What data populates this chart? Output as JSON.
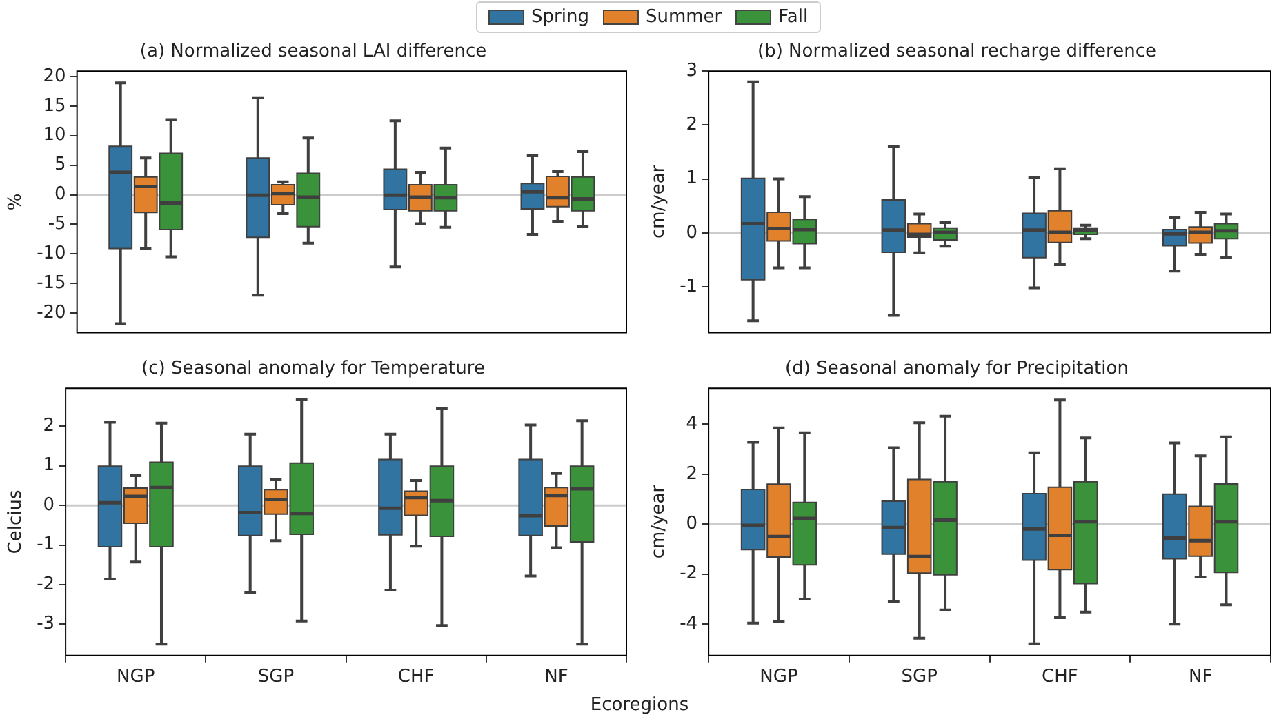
{
  "chart_data": [
    {
      "type": "box",
      "title": "(a) Normalized seasonal LAI difference",
      "ylabel": "%",
      "categories": [
        null,
        null,
        null,
        null
      ],
      "ylim": [
        -23.3,
        20.9
      ],
      "yticks": [
        -20,
        -15,
        -10,
        -5,
        0,
        5,
        10,
        15,
        20
      ],
      "tick_labels": "y",
      "grid": false,
      "legend": "top",
      "ref_lines": [
        {
          "axis": "y",
          "value": 0,
          "color": "#cccccc"
        }
      ],
      "series": [
        {
          "name": "Spring",
          "color": "#3274a1",
          "boxes": [
            {
              "low": -21.8,
              "q1": -9.1,
              "median": 3.8,
              "q3": 8.2,
              "high": 18.9
            },
            {
              "low": -17.0,
              "q1": -7.2,
              "median": -0.1,
              "q3": 6.2,
              "high": 16.4
            },
            {
              "low": -12.2,
              "q1": -2.5,
              "median": -0.1,
              "q3": 4.3,
              "high": 12.5
            },
            {
              "low": -6.7,
              "q1": -2.4,
              "median": 0.5,
              "q3": 1.9,
              "high": 6.6
            }
          ]
        },
        {
          "name": "Summer",
          "color": "#e1812c",
          "boxes": [
            {
              "low": -9.1,
              "q1": -3.0,
              "median": 1.4,
              "q3": 3.0,
              "high": 6.2
            },
            {
              "low": -3.2,
              "q1": -1.7,
              "median": 0.2,
              "q3": 1.7,
              "high": 2.2
            },
            {
              "low": -4.9,
              "q1": -2.7,
              "median": -0.4,
              "q3": 1.7,
              "high": 3.8
            },
            {
              "low": -4.5,
              "q1": -2.0,
              "median": -0.5,
              "q3": 3.1,
              "high": 3.9
            }
          ]
        },
        {
          "name": "Fall",
          "color": "#3a923a",
          "boxes": [
            {
              "low": -10.5,
              "q1": -5.9,
              "median": -1.4,
              "q3": 7.0,
              "high": 12.7
            },
            {
              "low": -8.2,
              "q1": -5.4,
              "median": -0.4,
              "q3": 3.6,
              "high": 9.6
            },
            {
              "low": -5.5,
              "q1": -2.7,
              "median": -0.5,
              "q3": 1.7,
              "high": 7.9
            },
            {
              "low": -5.3,
              "q1": -2.7,
              "median": -0.7,
              "q3": 3.0,
              "high": 7.3
            }
          ]
        }
      ]
    },
    {
      "type": "box",
      "title": "(b) Normalized seasonal recharge difference",
      "ylabel": "cm/year",
      "categories": [
        null,
        null,
        null,
        null
      ],
      "ylim": [
        -1.85,
        3.0
      ],
      "yticks": [
        -1,
        0,
        1,
        2,
        3
      ],
      "tick_labels": "y",
      "grid": false,
      "ref_lines": [
        {
          "axis": "y",
          "value": 0,
          "color": "#cccccc"
        }
      ],
      "series": [
        {
          "color": "#3274a1",
          "boxes": [
            {
              "low": -1.63,
              "q1": -0.87,
              "median": 0.17,
              "q3": 1.01,
              "high": 2.8
            },
            {
              "low": -1.53,
              "q1": -0.36,
              "median": 0.05,
              "q3": 0.61,
              "high": 1.61
            },
            {
              "low": -1.02,
              "q1": -0.46,
              "median": 0.05,
              "q3": 0.36,
              "high": 1.02
            },
            {
              "low": -0.71,
              "q1": -0.24,
              "median": -0.02,
              "q3": 0.06,
              "high": 0.28
            }
          ]
        },
        {
          "color": "#e1812c",
          "boxes": [
            {
              "low": -0.65,
              "q1": -0.15,
              "median": 0.08,
              "q3": 0.38,
              "high": 1.0
            },
            {
              "low": -0.37,
              "q1": -0.08,
              "median": -0.03,
              "q3": 0.17,
              "high": 0.35
            },
            {
              "low": -0.59,
              "q1": -0.18,
              "median": 0.01,
              "q3": 0.41,
              "high": 1.19
            },
            {
              "low": -0.4,
              "q1": -0.19,
              "median": 0.01,
              "q3": 0.11,
              "high": 0.38
            }
          ]
        },
        {
          "color": "#3a923a",
          "boxes": [
            {
              "low": -0.65,
              "q1": -0.2,
              "median": 0.06,
              "q3": 0.25,
              "high": 0.67
            },
            {
              "low": -0.25,
              "q1": -0.13,
              "median": 0.01,
              "q3": 0.09,
              "high": 0.19
            },
            {
              "low": -0.11,
              "q1": -0.03,
              "median": 0.05,
              "q3": 0.09,
              "high": 0.14
            },
            {
              "low": -0.46,
              "q1": -0.11,
              "median": 0.04,
              "q3": 0.17,
              "high": 0.35
            }
          ]
        }
      ]
    },
    {
      "type": "box",
      "title": "(c) Seasonal anomaly for Temperature",
      "ylabel": "Celcius",
      "xlabel": "Ecoregions",
      "categories": [
        "NGP",
        "SGP",
        "CHF",
        "NF"
      ],
      "ylim": [
        -3.79,
        2.96
      ],
      "yticks": [
        -3,
        -2,
        -1,
        0,
        1,
        2
      ],
      "grid": false,
      "ref_lines": [
        {
          "axis": "y",
          "value": 0,
          "color": "#cccccc"
        }
      ],
      "series": [
        {
          "color": "#3274a1",
          "boxes": [
            {
              "low": -1.86,
              "q1": -1.04,
              "median": 0.07,
              "q3": 0.99,
              "high": 2.1
            },
            {
              "low": -2.21,
              "q1": -0.76,
              "median": -0.18,
              "q3": 0.99,
              "high": 1.8
            },
            {
              "low": -2.14,
              "q1": -0.74,
              "median": -0.07,
              "q3": 1.16,
              "high": 1.8
            },
            {
              "low": -1.78,
              "q1": -0.76,
              "median": -0.26,
              "q3": 1.16,
              "high": 2.03
            }
          ]
        },
        {
          "color": "#e1812c",
          "boxes": [
            {
              "low": -1.43,
              "q1": -0.45,
              "median": 0.23,
              "q3": 0.44,
              "high": 0.75
            },
            {
              "low": -0.89,
              "q1": -0.22,
              "median": 0.15,
              "q3": 0.4,
              "high": 0.66
            },
            {
              "low": -1.03,
              "q1": -0.25,
              "median": 0.2,
              "q3": 0.36,
              "high": 0.63
            },
            {
              "low": -1.07,
              "q1": -0.52,
              "median": 0.25,
              "q3": 0.45,
              "high": 0.81
            }
          ]
        },
        {
          "color": "#3a923a",
          "boxes": [
            {
              "low": -3.5,
              "q1": -1.04,
              "median": 0.45,
              "q3": 1.09,
              "high": 2.08
            },
            {
              "low": -2.92,
              "q1": -0.73,
              "median": -0.2,
              "q3": 1.07,
              "high": 2.67
            },
            {
              "low": -3.03,
              "q1": -0.78,
              "median": 0.12,
              "q3": 0.99,
              "high": 2.44
            },
            {
              "low": -3.5,
              "q1": -0.92,
              "median": 0.42,
              "q3": 0.99,
              "high": 2.14
            }
          ]
        }
      ]
    },
    {
      "type": "box",
      "title": "(d) Seasonal anomaly for Precipitation",
      "ylabel": "cm/year",
      "categories": [
        "NGP",
        "SGP",
        "CHF",
        "NF"
      ],
      "ylim": [
        -5.26,
        5.44
      ],
      "yticks": [
        -4,
        -2,
        0,
        2,
        4
      ],
      "grid": false,
      "ref_lines": [
        {
          "axis": "y",
          "value": 0,
          "color": "#cccccc"
        }
      ],
      "series": [
        {
          "color": "#3274a1",
          "boxes": [
            {
              "low": -3.96,
              "q1": -1.02,
              "median": -0.05,
              "q3": 1.39,
              "high": 3.28
            },
            {
              "low": -3.11,
              "q1": -1.2,
              "median": -0.14,
              "q3": 0.92,
              "high": 3.06
            },
            {
              "low": -4.79,
              "q1": -1.44,
              "median": -0.19,
              "q3": 1.22,
              "high": 2.86
            },
            {
              "low": -4.0,
              "q1": -1.39,
              "median": -0.56,
              "q3": 1.2,
              "high": 3.25
            }
          ]
        },
        {
          "color": "#e1812c",
          "boxes": [
            {
              "low": -3.9,
              "q1": -1.32,
              "median": -0.5,
              "q3": 1.6,
              "high": 3.85
            },
            {
              "low": -4.57,
              "q1": -1.96,
              "median": -1.3,
              "q3": 1.79,
              "high": 4.06
            },
            {
              "low": -3.75,
              "q1": -1.82,
              "median": -0.45,
              "q3": 1.48,
              "high": 4.97
            },
            {
              "low": -2.12,
              "q1": -1.28,
              "median": -0.66,
              "q3": 0.71,
              "high": 2.73
            }
          ]
        },
        {
          "color": "#3a923a",
          "boxes": [
            {
              "low": -3.0,
              "q1": -1.63,
              "median": 0.23,
              "q3": 0.87,
              "high": 3.66
            },
            {
              "low": -3.44,
              "q1": -2.03,
              "median": 0.16,
              "q3": 1.7,
              "high": 4.32
            },
            {
              "low": -3.52,
              "q1": -2.38,
              "median": 0.1,
              "q3": 1.7,
              "high": 3.45
            },
            {
              "low": -3.23,
              "q1": -1.93,
              "median": 0.1,
              "q3": 1.61,
              "high": 3.49
            }
          ]
        }
      ]
    }
  ]
}
